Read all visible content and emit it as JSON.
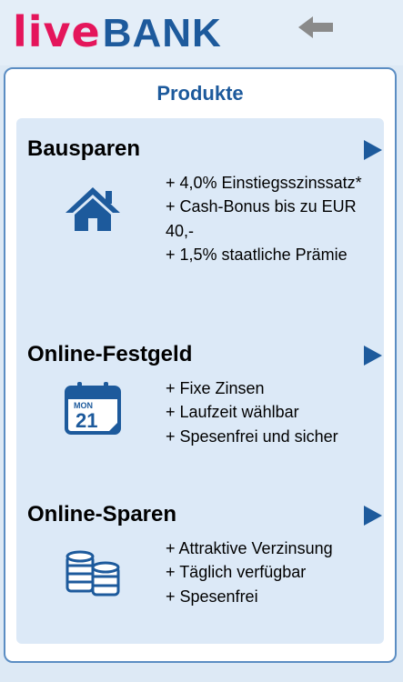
{
  "header": {
    "logo_live": "live",
    "logo_bank": "BANK",
    "back_icon": "back-arrow-icon",
    "colors": {
      "live": "#e4155b",
      "bank": "#1d5a9c"
    }
  },
  "panel": {
    "title": "Produkte"
  },
  "products": [
    {
      "title": "Bausparen",
      "icon": "house-icon",
      "features": [
        "+ 4,0% Einstiegsszinssatz*",
        "+ Cash-Bonus bis zu EUR 40,-",
        "+ 1,5% staatliche Prämie"
      ]
    },
    {
      "title": "Online-Festgeld",
      "icon": "calendar-icon",
      "calendar_day": "MON",
      "calendar_date": "21",
      "features": [
        "+ Fixe Zinsen",
        "+ Laufzeit wählbar",
        "+ Spesenfrei und sicher"
      ]
    },
    {
      "title": "Online-Sparen",
      "icon": "coins-icon",
      "features": [
        "+ Attraktive Verzinsung",
        "+ Täglich verfügbar",
        "+ Spesenfrei"
      ]
    }
  ],
  "accent_color": "#1d5a9c"
}
